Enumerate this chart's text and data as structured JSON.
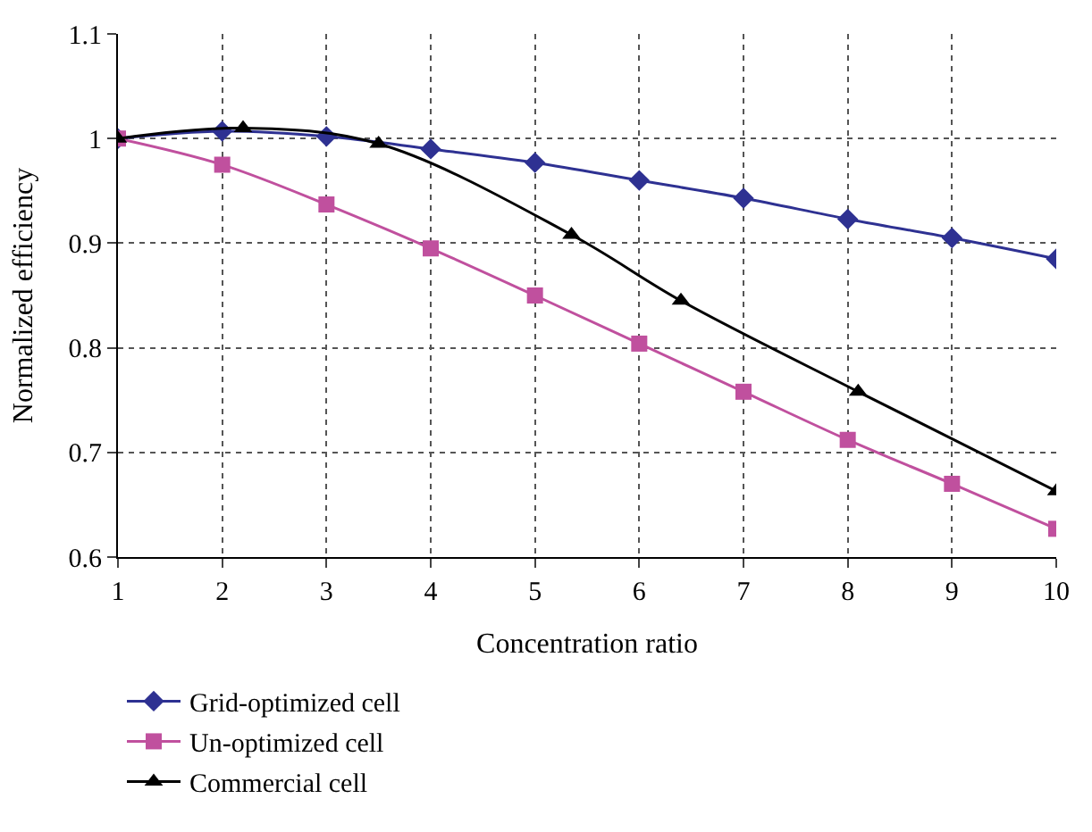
{
  "chart_data": {
    "type": "line",
    "xlabel": "Concentration ratio",
    "ylabel": "Normalized efficiency",
    "xlim": [
      1,
      10
    ],
    "ylim": [
      0.6,
      1.1
    ],
    "xticks": [
      1,
      2,
      3,
      4,
      5,
      6,
      7,
      8,
      9,
      10
    ],
    "yticks": [
      0.6,
      0.7,
      0.8,
      0.9,
      1,
      1.1
    ],
    "grid": true,
    "legend": "bottom",
    "line_style": "solid",
    "series": [
      {
        "name": "Grid-optimized cell",
        "color": "#2e3192",
        "marker": "diamond",
        "x": [
          1,
          2,
          3,
          4,
          5,
          6,
          7,
          8,
          9,
          10
        ],
        "values": [
          1.0,
          1.007,
          1.002,
          0.99,
          0.977,
          0.96,
          0.943,
          0.923,
          0.905,
          0.885
        ]
      },
      {
        "name": "Un-optimized cell",
        "color": "#c0509e",
        "marker": "square",
        "x": [
          1,
          2,
          3,
          4,
          5,
          6,
          7,
          8,
          9,
          10
        ],
        "values": [
          1.0,
          0.975,
          0.937,
          0.895,
          0.85,
          0.804,
          0.758,
          0.712,
          0.67,
          0.627
        ]
      },
      {
        "name": "Commercial cell",
        "color": "#000000",
        "marker": "triangle",
        "x": [
          1,
          2.2,
          3.5,
          5.35,
          6.4,
          8.1,
          10
        ],
        "values": [
          1.0,
          1.01,
          0.995,
          0.908,
          0.845,
          0.758,
          0.663
        ]
      }
    ]
  }
}
